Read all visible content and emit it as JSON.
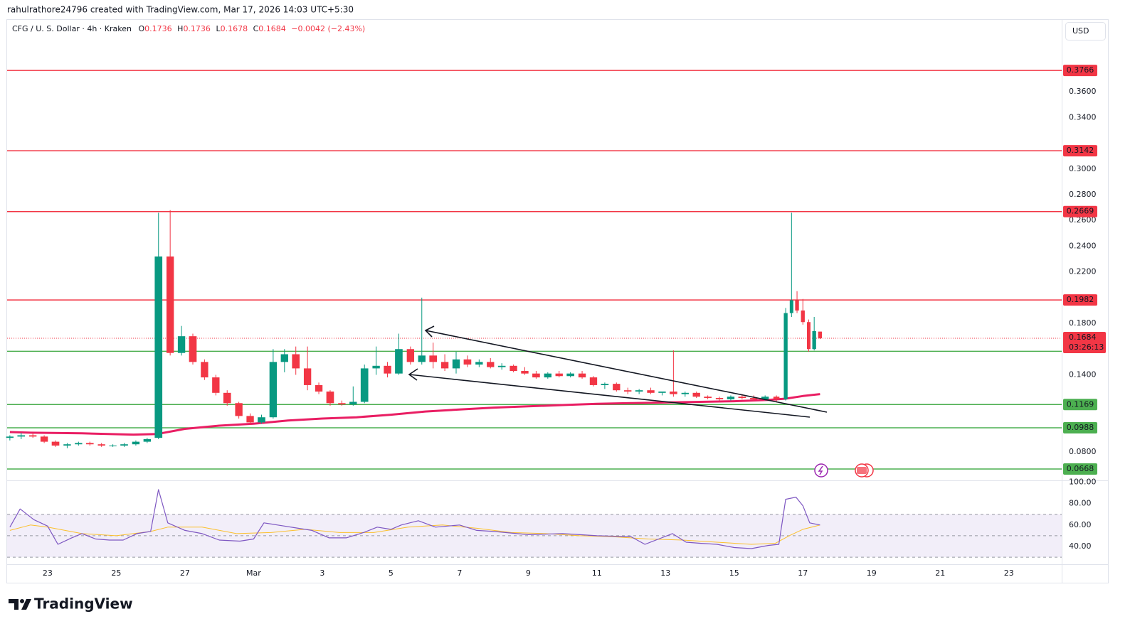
{
  "attribution": "rahulrathore24796 created with TradingView.com, Mar 17, 2026 14:03 UTC+5:30",
  "chart_data": {
    "type": "candlestick",
    "title": "CFG / U. S. Dollar · 4h · Kraken",
    "ohlc_legend": [
      {
        "label": "O",
        "value": "0.1736"
      },
      {
        "label": "H",
        "value": "0.1736"
      },
      {
        "label": "L",
        "value": "0.1678"
      },
      {
        "label": "C",
        "value": "0.1684"
      }
    ],
    "change": "−0.0042 (−2.43%)",
    "currency": "USD",
    "up_color": "#089981",
    "down_color": "#f23645",
    "xlim": [
      21.82,
      52.54
    ],
    "xticks": [
      23,
      25,
      27,
      {
        "value": 29,
        "label": "Mar"
      },
      {
        "value": 31,
        "label": "3"
      },
      {
        "value": 33,
        "label": "5"
      },
      {
        "value": 35,
        "label": "7"
      },
      {
        "value": 37,
        "label": "9"
      },
      {
        "value": 39,
        "label": "11"
      },
      {
        "value": 41,
        "label": "13"
      },
      {
        "value": 43,
        "label": "15"
      },
      {
        "value": 45,
        "label": "17"
      },
      {
        "value": 47,
        "label": "19"
      },
      {
        "value": 49,
        "label": "21"
      },
      {
        "value": 51,
        "label": "23"
      }
    ],
    "ylim": [
      0.0585,
      0.4159
    ],
    "yticks": [
      {
        "value": 0.08,
        "label": "0.0800"
      },
      {
        "value": 0.14,
        "label": "0.1400"
      },
      {
        "value": 0.18,
        "label": "0.1800"
      },
      {
        "value": 0.22,
        "label": "0.2200"
      },
      {
        "value": 0.24,
        "label": "0.2400"
      },
      {
        "value": 0.26,
        "label": "0.2600"
      },
      {
        "value": 0.28,
        "label": "0.2800"
      },
      {
        "value": 0.3,
        "label": "0.3000"
      },
      {
        "value": 0.34,
        "label": "0.3400"
      },
      {
        "value": 0.36,
        "label": "0.3600"
      }
    ],
    "candles": [
      {
        "x": 21.9,
        "open": 0.091,
        "high": 0.093,
        "low": 0.089,
        "close": 0.092
      },
      {
        "x": 22.23,
        "open": 0.092,
        "high": 0.095,
        "low": 0.09,
        "close": 0.093
      },
      {
        "x": 22.57,
        "open": 0.093,
        "high": 0.095,
        "low": 0.091,
        "close": 0.092
      },
      {
        "x": 22.9,
        "open": 0.092,
        "high": 0.093,
        "low": 0.087,
        "close": 0.088
      },
      {
        "x": 23.23,
        "open": 0.088,
        "high": 0.089,
        "low": 0.084,
        "close": 0.085
      },
      {
        "x": 23.57,
        "open": 0.085,
        "high": 0.087,
        "low": 0.083,
        "close": 0.086
      },
      {
        "x": 23.9,
        "open": 0.086,
        "high": 0.088,
        "low": 0.085,
        "close": 0.087
      },
      {
        "x": 24.23,
        "open": 0.087,
        "high": 0.088,
        "low": 0.085,
        "close": 0.086
      },
      {
        "x": 24.57,
        "open": 0.086,
        "high": 0.087,
        "low": 0.084,
        "close": 0.085
      },
      {
        "x": 24.9,
        "open": 0.085,
        "high": 0.086,
        "low": 0.084,
        "close": 0.085
      },
      {
        "x": 25.23,
        "open": 0.085,
        "high": 0.087,
        "low": 0.084,
        "close": 0.086
      },
      {
        "x": 25.57,
        "open": 0.086,
        "high": 0.089,
        "low": 0.085,
        "close": 0.088
      },
      {
        "x": 25.9,
        "open": 0.088,
        "high": 0.091,
        "low": 0.087,
        "close": 0.09
      },
      {
        "x": 26.23,
        "open": 0.091,
        "high": 0.266,
        "low": 0.09,
        "close": 0.232
      },
      {
        "x": 26.57,
        "open": 0.232,
        "high": 0.268,
        "low": 0.155,
        "close": 0.157
      },
      {
        "x": 26.9,
        "open": 0.157,
        "high": 0.178,
        "low": 0.155,
        "close": 0.17
      },
      {
        "x": 27.23,
        "open": 0.17,
        "high": 0.172,
        "low": 0.148,
        "close": 0.15
      },
      {
        "x": 27.57,
        "open": 0.15,
        "high": 0.152,
        "low": 0.136,
        "close": 0.138
      },
      {
        "x": 27.9,
        "open": 0.138,
        "high": 0.14,
        "low": 0.124,
        "close": 0.126
      },
      {
        "x": 28.23,
        "open": 0.126,
        "high": 0.128,
        "low": 0.116,
        "close": 0.118
      },
      {
        "x": 28.57,
        "open": 0.118,
        "high": 0.119,
        "low": 0.106,
        "close": 0.108
      },
      {
        "x": 28.9,
        "open": 0.108,
        "high": 0.11,
        "low": 0.101,
        "close": 0.103
      },
      {
        "x": 29.23,
        "open": 0.103,
        "high": 0.109,
        "low": 0.102,
        "close": 0.107
      },
      {
        "x": 29.57,
        "open": 0.107,
        "high": 0.16,
        "low": 0.106,
        "close": 0.15
      },
      {
        "x": 29.9,
        "open": 0.15,
        "high": 0.16,
        "low": 0.142,
        "close": 0.156
      },
      {
        "x": 30.23,
        "open": 0.156,
        "high": 0.162,
        "low": 0.14,
        "close": 0.145
      },
      {
        "x": 30.57,
        "open": 0.145,
        "high": 0.162,
        "low": 0.128,
        "close": 0.132
      },
      {
        "x": 30.9,
        "open": 0.132,
        "high": 0.134,
        "low": 0.125,
        "close": 0.127
      },
      {
        "x": 31.23,
        "open": 0.127,
        "high": 0.128,
        "low": 0.116,
        "close": 0.118
      },
      {
        "x": 31.57,
        "open": 0.118,
        "high": 0.12,
        "low": 0.116,
        "close": 0.117
      },
      {
        "x": 31.9,
        "open": 0.117,
        "high": 0.131,
        "low": 0.116,
        "close": 0.119
      },
      {
        "x": 32.23,
        "open": 0.119,
        "high": 0.148,
        "low": 0.118,
        "close": 0.145
      },
      {
        "x": 32.57,
        "open": 0.145,
        "high": 0.162,
        "low": 0.14,
        "close": 0.147
      },
      {
        "x": 32.9,
        "open": 0.147,
        "high": 0.15,
        "low": 0.138,
        "close": 0.141
      },
      {
        "x": 33.23,
        "open": 0.141,
        "high": 0.172,
        "low": 0.14,
        "close": 0.16
      },
      {
        "x": 33.57,
        "open": 0.16,
        "high": 0.162,
        "low": 0.148,
        "close": 0.15
      },
      {
        "x": 33.9,
        "open": 0.15,
        "high": 0.2,
        "low": 0.148,
        "close": 0.155
      },
      {
        "x": 34.23,
        "open": 0.155,
        "high": 0.165,
        "low": 0.145,
        "close": 0.15
      },
      {
        "x": 34.57,
        "open": 0.15,
        "high": 0.156,
        "low": 0.143,
        "close": 0.145
      },
      {
        "x": 34.9,
        "open": 0.145,
        "high": 0.158,
        "low": 0.141,
        "close": 0.152
      },
      {
        "x": 35.23,
        "open": 0.152,
        "high": 0.155,
        "low": 0.146,
        "close": 0.148
      },
      {
        "x": 35.57,
        "open": 0.148,
        "high": 0.152,
        "low": 0.146,
        "close": 0.15
      },
      {
        "x": 35.9,
        "open": 0.15,
        "high": 0.153,
        "low": 0.145,
        "close": 0.146
      },
      {
        "x": 36.23,
        "open": 0.146,
        "high": 0.149,
        "low": 0.144,
        "close": 0.147
      },
      {
        "x": 36.57,
        "open": 0.147,
        "high": 0.148,
        "low": 0.142,
        "close": 0.143
      },
      {
        "x": 36.9,
        "open": 0.143,
        "high": 0.146,
        "low": 0.14,
        "close": 0.141
      },
      {
        "x": 37.23,
        "open": 0.141,
        "high": 0.143,
        "low": 0.137,
        "close": 0.138
      },
      {
        "x": 37.57,
        "open": 0.138,
        "high": 0.142,
        "low": 0.137,
        "close": 0.141
      },
      {
        "x": 37.9,
        "open": 0.141,
        "high": 0.143,
        "low": 0.138,
        "close": 0.139
      },
      {
        "x": 38.23,
        "open": 0.139,
        "high": 0.142,
        "low": 0.138,
        "close": 0.141
      },
      {
        "x": 38.57,
        "open": 0.141,
        "high": 0.143,
        "low": 0.137,
        "close": 0.138
      },
      {
        "x": 38.9,
        "open": 0.138,
        "high": 0.139,
        "low": 0.131,
        "close": 0.132
      },
      {
        "x": 39.23,
        "open": 0.132,
        "high": 0.134,
        "low": 0.129,
        "close": 0.133
      },
      {
        "x": 39.57,
        "open": 0.133,
        "high": 0.134,
        "low": 0.127,
        "close": 0.128
      },
      {
        "x": 39.9,
        "open": 0.128,
        "high": 0.13,
        "low": 0.125,
        "close": 0.127
      },
      {
        "x": 40.23,
        "open": 0.127,
        "high": 0.129,
        "low": 0.125,
        "close": 0.128
      },
      {
        "x": 40.57,
        "open": 0.128,
        "high": 0.13,
        "low": 0.125,
        "close": 0.126
      },
      {
        "x": 40.9,
        "open": 0.126,
        "high": 0.127,
        "low": 0.124,
        "close": 0.127
      },
      {
        "x": 41.23,
        "open": 0.127,
        "high": 0.159,
        "low": 0.123,
        "close": 0.125
      },
      {
        "x": 41.57,
        "open": 0.125,
        "high": 0.127,
        "low": 0.123,
        "close": 0.126
      },
      {
        "x": 41.9,
        "open": 0.126,
        "high": 0.127,
        "low": 0.122,
        "close": 0.123
      },
      {
        "x": 42.23,
        "open": 0.123,
        "high": 0.124,
        "low": 0.121,
        "close": 0.122
      },
      {
        "x": 42.57,
        "open": 0.122,
        "high": 0.123,
        "low": 0.12,
        "close": 0.121
      },
      {
        "x": 42.9,
        "open": 0.121,
        "high": 0.124,
        "low": 0.12,
        "close": 0.123
      },
      {
        "x": 43.23,
        "open": 0.123,
        "high": 0.125,
        "low": 0.121,
        "close": 0.122
      },
      {
        "x": 43.57,
        "open": 0.122,
        "high": 0.124,
        "low": 0.12,
        "close": 0.121
      },
      {
        "x": 43.9,
        "open": 0.121,
        "high": 0.124,
        "low": 0.12,
        "close": 0.123
      },
      {
        "x": 44.23,
        "open": 0.123,
        "high": 0.124,
        "low": 0.119,
        "close": 0.121
      },
      {
        "x": 44.5,
        "open": 0.121,
        "high": 0.192,
        "low": 0.12,
        "close": 0.188
      },
      {
        "x": 44.67,
        "open": 0.188,
        "high": 0.266,
        "low": 0.185,
        "close": 0.198
      },
      {
        "x": 44.83,
        "open": 0.198,
        "high": 0.205,
        "low": 0.188,
        "close": 0.19
      },
      {
        "x": 45.0,
        "open": 0.19,
        "high": 0.199,
        "low": 0.179,
        "close": 0.181
      },
      {
        "x": 45.17,
        "open": 0.181,
        "high": 0.183,
        "low": 0.158,
        "close": 0.16
      },
      {
        "x": 45.33,
        "open": 0.16,
        "high": 0.185,
        "low": 0.159,
        "close": 0.174
      },
      {
        "x": 45.5,
        "open": 0.1736,
        "high": 0.1736,
        "low": 0.1678,
        "close": 0.1684
      }
    ],
    "levels": [
      {
        "value": 0.3766,
        "color": "#f23645",
        "label": true
      },
      {
        "value": 0.3142,
        "color": "#f23645",
        "label": true
      },
      {
        "value": 0.2669,
        "color": "#f23645",
        "label": true
      },
      {
        "value": 0.1982,
        "color": "#f23645",
        "label": true
      },
      {
        "value": 0.1583,
        "color": "#4caf50",
        "label": false
      },
      {
        "value": 0.1169,
        "color": "#4caf50",
        "label": true
      },
      {
        "value": 0.0988,
        "color": "#4caf50",
        "label": true
      },
      {
        "value": 0.0668,
        "color": "#4caf50",
        "label": true
      }
    ],
    "last_price": 0.1684,
    "countdown": "03:26:13",
    "ma": {
      "color": "#e91e63",
      "x": [
        21.9,
        22.5,
        24,
        25.5,
        26.2,
        27,
        28,
        29,
        30,
        31,
        32,
        33,
        34,
        35,
        36,
        37,
        38,
        39,
        40,
        41,
        42,
        43,
        44,
        44.5,
        45,
        45.5
      ],
      "values": [
        0.0955,
        0.095,
        0.0945,
        0.0935,
        0.094,
        0.098,
        0.1005,
        0.102,
        0.1045,
        0.106,
        0.107,
        0.109,
        0.1115,
        0.113,
        0.1145,
        0.1155,
        0.1165,
        0.1175,
        0.118,
        0.1185,
        0.119,
        0.1195,
        0.1205,
        0.1215,
        0.1235,
        0.125
      ]
    },
    "rsi": {
      "ylim": [
        26.1,
        100.3
      ],
      "yticks": [
        {
          "value": 40,
          "label": "40.00"
        },
        {
          "value": 60,
          "label": "60.00"
        },
        {
          "value": 80,
          "label": "80.00"
        },
        {
          "value": 100,
          "label": "100.00"
        }
      ],
      "band": [
        30,
        70
      ],
      "midline": 50,
      "color": "#7e57c2",
      "x": [
        21.9,
        22.2,
        22.6,
        23,
        23.3,
        23.7,
        24,
        24.4,
        24.8,
        25.2,
        25.6,
        26,
        26.23,
        26.5,
        27,
        27.5,
        28,
        28.6,
        29,
        29.3,
        29.7,
        30.3,
        30.7,
        31.2,
        31.7,
        32.2,
        32.6,
        33,
        33.3,
        33.8,
        34.3,
        35,
        35.5,
        36,
        37,
        38,
        39,
        40,
        40.4,
        40.8,
        41.2,
        41.6,
        42,
        42.5,
        43,
        43.5,
        44,
        44.3,
        44.5,
        44.8,
        45,
        45.2,
        45.5
      ],
      "values": [
        58,
        75,
        65,
        59,
        42,
        48,
        52,
        47,
        46,
        46,
        52,
        54,
        93,
        62,
        55,
        52,
        46,
        45,
        47,
        62,
        60,
        57,
        55,
        48,
        48,
        53,
        58,
        56,
        60,
        64,
        58,
        60,
        55,
        54,
        51,
        52,
        50,
        49,
        42,
        47,
        52,
        44,
        43,
        42,
        39,
        38,
        41,
        42,
        84,
        86,
        78,
        62,
        60
      ],
      "ma": {
        "color": "#fbc02d",
        "x": [
          21.9,
          22.5,
          23,
          24,
          25,
          26,
          26.5,
          27.5,
          28.5,
          29.5,
          30.5,
          31.5,
          32.5,
          33.5,
          34.5,
          35.5,
          36.5,
          37.5,
          38.5,
          39.5,
          40.5,
          41.5,
          42.5,
          43.5,
          44.2,
          44.6,
          45,
          45.5
        ],
        "values": [
          55,
          60,
          58,
          52,
          50,
          54,
          58,
          58,
          52,
          53,
          56,
          53,
          53,
          58,
          60,
          57,
          53,
          52,
          50,
          49,
          47,
          46,
          44,
          42,
          43,
          50,
          56,
          60
        ]
      }
    }
  },
  "footer": {
    "logo": "TradingView"
  }
}
